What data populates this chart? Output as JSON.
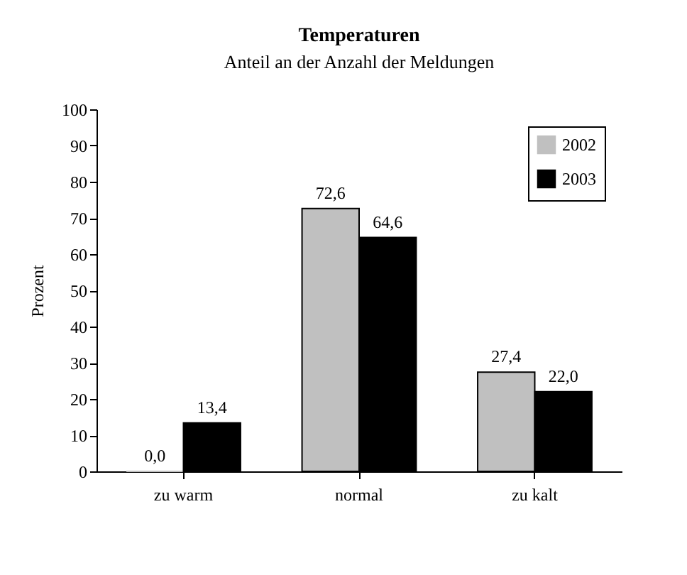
{
  "chart_data": {
    "type": "bar",
    "title": "Temperaturen",
    "subtitle": "Anteil an der Anzahl der Meldungen",
    "ylabel": "Prozent",
    "categories": [
      "zu warm",
      "normal",
      "zu kalt"
    ],
    "series": [
      {
        "name": "2002",
        "color": "#c0c0c0",
        "values": [
          0.0,
          72.6,
          27.4
        ],
        "value_labels": [
          "0,0",
          "72,6",
          "27,4"
        ]
      },
      {
        "name": "2003",
        "color": "#000000",
        "values": [
          13.4,
          64.6,
          22.0
        ],
        "value_labels": [
          "13,4",
          "64,6",
          "22,0"
        ]
      }
    ],
    "ylim": [
      0,
      100
    ],
    "yticks": [
      0,
      10,
      20,
      30,
      40,
      50,
      60,
      70,
      80,
      90,
      100
    ],
    "grid": false,
    "legend": "top right"
  }
}
